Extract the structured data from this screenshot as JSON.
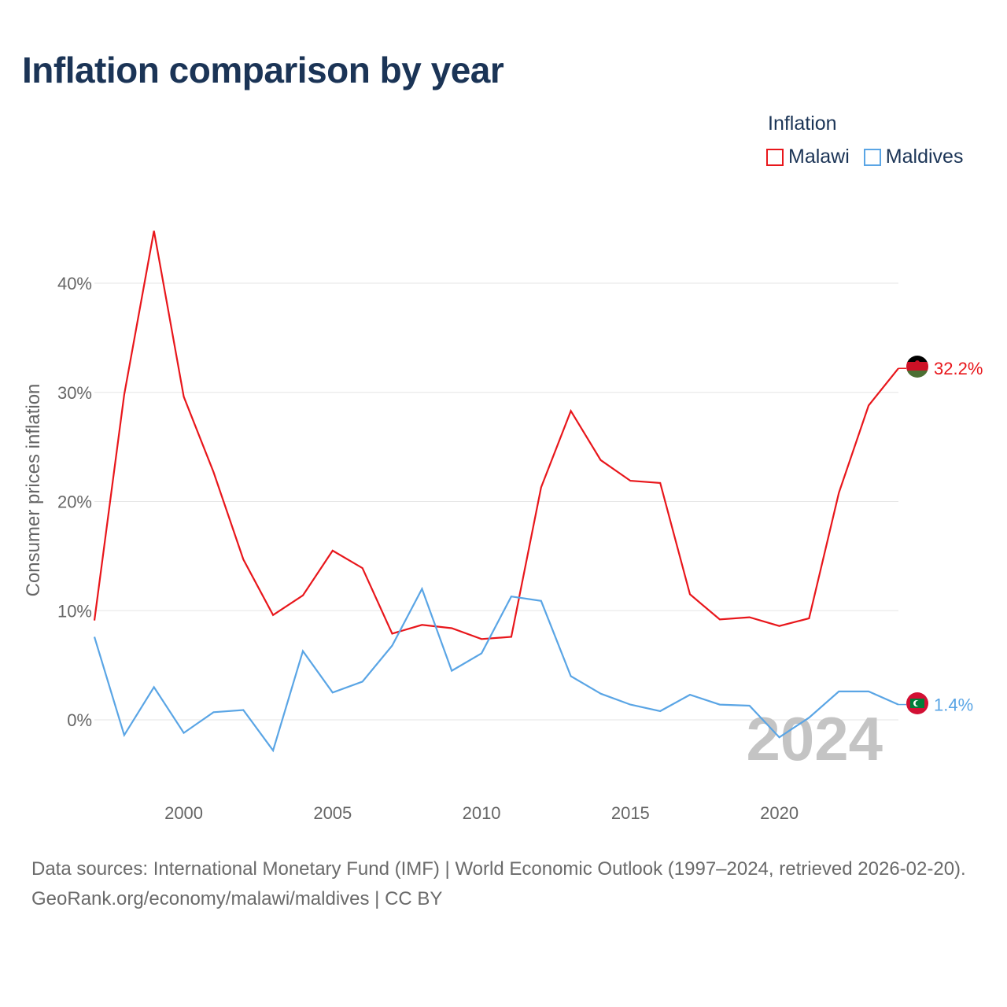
{
  "title": "Inflation comparison by year",
  "legend": {
    "title": "Inflation",
    "items": [
      {
        "label": "Malawi",
        "color": "#e8161b"
      },
      {
        "label": "Maldives",
        "color": "#5aa5e5"
      }
    ]
  },
  "chart_data": {
    "type": "line",
    "title": "Inflation comparison by year",
    "xlabel": "",
    "ylabel": "Consumer prices inflation",
    "x": [
      1997,
      1998,
      1999,
      2000,
      2001,
      2002,
      2003,
      2004,
      2005,
      2006,
      2007,
      2008,
      2009,
      2010,
      2011,
      2012,
      2013,
      2014,
      2015,
      2016,
      2017,
      2018,
      2019,
      2020,
      2021,
      2022,
      2023,
      2024
    ],
    "xlim": [
      1997,
      2024
    ],
    "ylim": [
      -6,
      50
    ],
    "x_ticks": [
      2000,
      2005,
      2010,
      2015,
      2020
    ],
    "y_ticks": [
      0,
      10,
      20,
      30,
      40
    ],
    "y_tick_labels": [
      "0%",
      "10%",
      "20%",
      "30%",
      "40%"
    ],
    "grid": true,
    "series": [
      {
        "name": "Malawi",
        "color": "#e8161b",
        "values": [
          9.1,
          29.8,
          44.8,
          29.6,
          22.7,
          14.7,
          9.6,
          11.4,
          15.5,
          13.9,
          7.9,
          8.7,
          8.4,
          7.4,
          7.6,
          21.3,
          28.3,
          23.8,
          21.9,
          21.7,
          11.5,
          9.2,
          9.4,
          8.6,
          9.3,
          20.8,
          28.8,
          32.2
        ],
        "end_label": "32.2%"
      },
      {
        "name": "Maldives",
        "color": "#5aa5e5",
        "values": [
          7.6,
          -1.4,
          3.0,
          -1.2,
          0.7,
          0.9,
          -2.8,
          6.3,
          2.5,
          3.5,
          6.8,
          12.0,
          4.5,
          6.1,
          11.3,
          10.9,
          4.0,
          2.4,
          1.4,
          0.8,
          2.3,
          1.4,
          1.3,
          -1.6,
          0.2,
          2.6,
          2.6,
          1.4
        ],
        "end_label": "1.4%"
      }
    ],
    "annotation": "2024"
  },
  "source": {
    "line1": "Data sources: International Monetary Fund (IMF) | World Economic Outlook (1997–2024, retrieved 2026-02-20).",
    "line2": "GeoRank.org/economy/malawi/maldives | CC BY"
  }
}
